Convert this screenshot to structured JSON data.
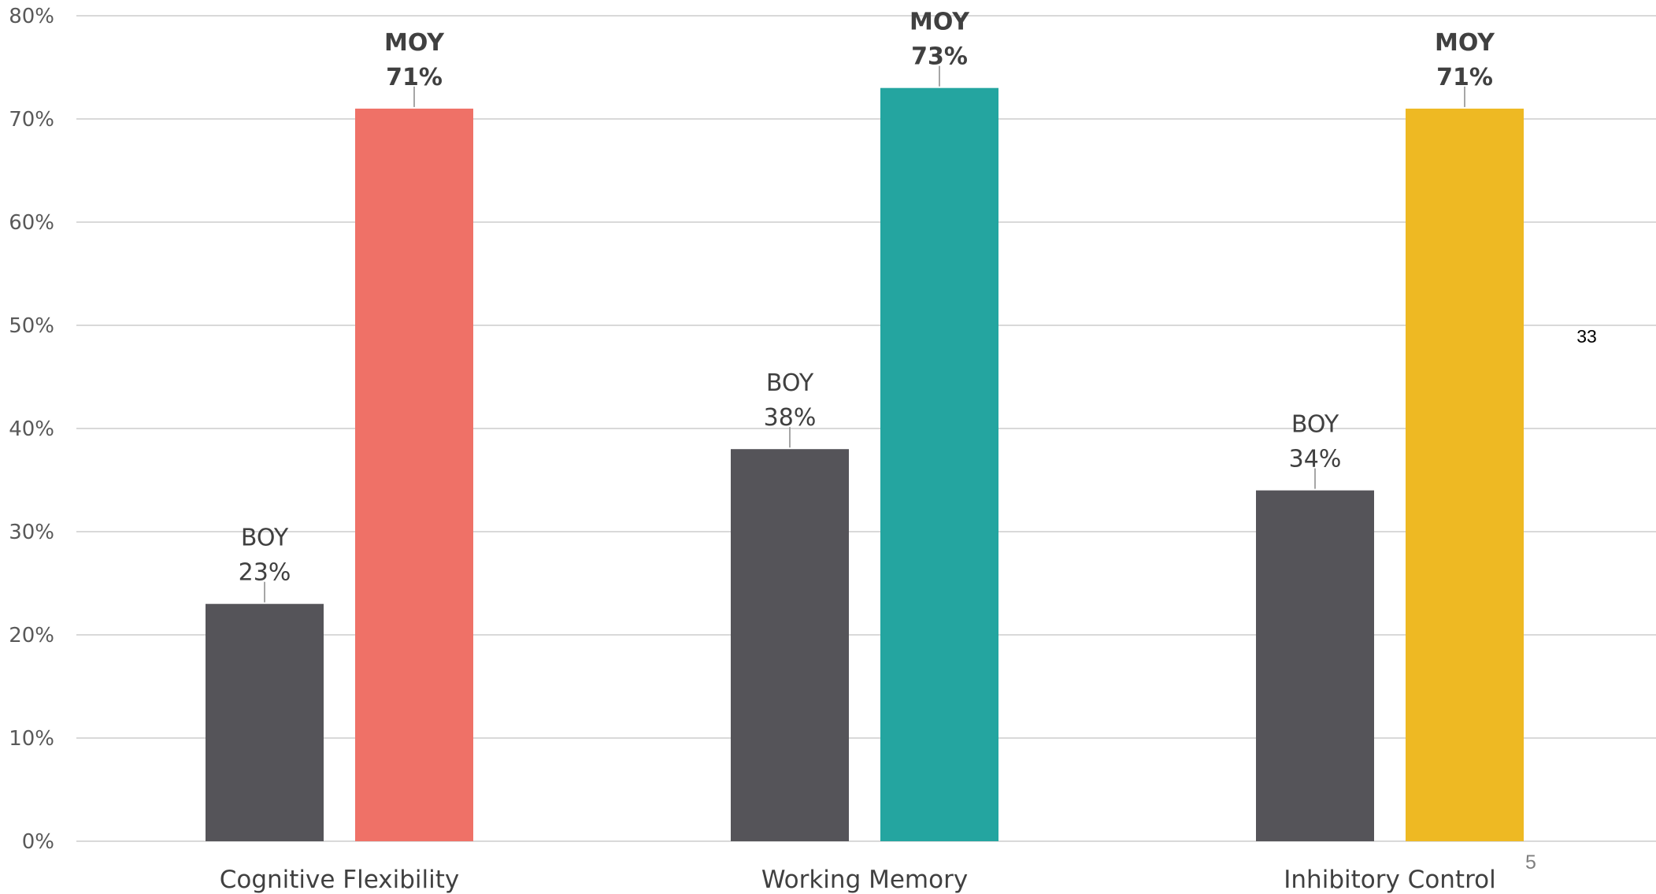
{
  "chart_data": {
    "type": "bar",
    "categories": [
      "Cognitive Flexibility",
      "Working Memory",
      "Inhibitory Control"
    ],
    "series": [
      {
        "name": "BOY",
        "values": [
          23,
          38,
          34
        ],
        "colors": [
          "#555459",
          "#555459",
          "#555459"
        ]
      },
      {
        "name": "MOY",
        "values": [
          71,
          73,
          71
        ],
        "colors": [
          "#EF7167",
          "#24A5A0",
          "#EEB923"
        ]
      }
    ],
    "ylim": [
      0,
      80
    ],
    "yticks": [
      0,
      10,
      20,
      30,
      40,
      50,
      60,
      70,
      80
    ],
    "ytick_suffix": "%",
    "grid": true,
    "legend": "none",
    "title": "",
    "xlabel": "",
    "ylabel": ""
  },
  "annotations": {
    "floating_number": "33",
    "page_number": "5"
  },
  "colors": {
    "gridline": "#D9D9D9",
    "leader_line": "#A6A6A6",
    "axis_text": "#595959"
  }
}
